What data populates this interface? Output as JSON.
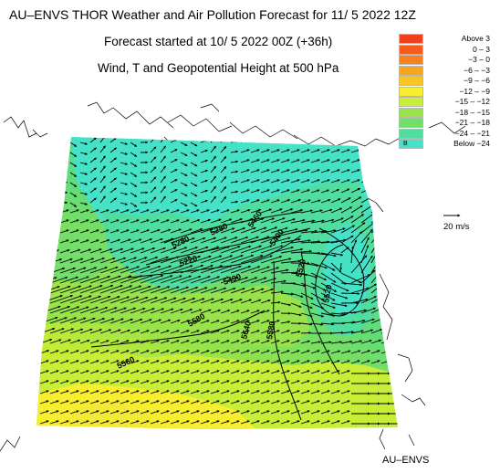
{
  "title": {
    "line1": "AU–ENVS THOR Weather and Air Pollution Forecast for 11/ 5 2022  12Z",
    "line2": "Forecast started at 10/ 5 2022  00Z (+36h)",
    "line3": "Wind, T and Geopotential Height at 500 hPa"
  },
  "legend": {
    "entries": [
      {
        "label": "Above     3",
        "color": "#f0401e"
      },
      {
        "label": "0  –   3",
        "color": "#f55c1c"
      },
      {
        "label": "−3  –   0",
        "color": "#f7811e"
      },
      {
        "label": "−6  –  −3",
        "color": "#f7a41f"
      },
      {
        "label": "−9  –  −6",
        "color": "#f8c524"
      },
      {
        "label": "−12  –  −9",
        "color": "#f6ee2e"
      },
      {
        "label": "−15  – −12",
        "color": "#c8ee38"
      },
      {
        "label": "−18  – −15",
        "color": "#98e34a"
      },
      {
        "label": "−21  – −18",
        "color": "#74de6a"
      },
      {
        "label": "−24  – −21",
        "color": "#4fde9f"
      },
      {
        "label": "Below  −24",
        "color": "#45e2c8",
        "swatch_text": "B"
      }
    ]
  },
  "wind_scale": {
    "label": "20 m/s"
  },
  "contours": [
    {
      "label": "5280"
    },
    {
      "label": "5280"
    },
    {
      "label": "5460"
    },
    {
      "label": "5220"
    },
    {
      "label": "5400"
    },
    {
      "label": "5490"
    },
    {
      "label": "5520"
    },
    {
      "label": "5580"
    },
    {
      "label": "5640"
    },
    {
      "label": "5580"
    },
    {
      "label": "5520"
    },
    {
      "label": "5560"
    }
  ],
  "footer": "AU–ENVS"
}
